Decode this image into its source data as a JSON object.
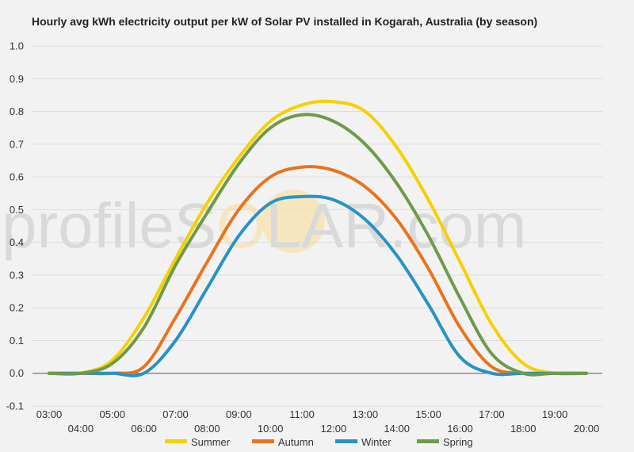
{
  "chart_data": {
    "type": "line",
    "title": "Hourly avg kWh electricity output per kW of Solar PV installed in Kogarah, Australia (by season)",
    "xlabel": "",
    "ylabel": "",
    "ylim": [
      -0.1,
      1.0
    ],
    "yticks": [
      "1.0",
      "0.9",
      "0.8",
      "0.7",
      "0.6",
      "0.5",
      "0.4",
      "0.3",
      "0.2",
      "0.1",
      "0.0",
      "-0.1"
    ],
    "categories": [
      "03:00",
      "04:00",
      "05:00",
      "06:00",
      "07:00",
      "08:00",
      "09:00",
      "10:00",
      "11:00",
      "12:00",
      "13:00",
      "14:00",
      "15:00",
      "16:00",
      "17:00",
      "18:00",
      "19:00",
      "20:00"
    ],
    "grid": true,
    "legend_position": "bottom",
    "series": [
      {
        "name": "Summer",
        "color": "#f7d000",
        "values": [
          0,
          0,
          0.04,
          0.17,
          0.35,
          0.52,
          0.66,
          0.77,
          0.82,
          0.83,
          0.8,
          0.69,
          0.53,
          0.34,
          0.15,
          0.03,
          0,
          0
        ]
      },
      {
        "name": "Autumn",
        "color": "#e8741e",
        "values": [
          0,
          0,
          0,
          0.02,
          0.17,
          0.34,
          0.5,
          0.6,
          0.63,
          0.62,
          0.57,
          0.47,
          0.32,
          0.14,
          0.02,
          0,
          0,
          0
        ]
      },
      {
        "name": "Winter",
        "color": "#2793c5",
        "values": [
          0,
          0,
          0,
          0,
          0.1,
          0.26,
          0.42,
          0.52,
          0.54,
          0.53,
          0.47,
          0.36,
          0.21,
          0.05,
          0,
          0,
          0,
          0
        ]
      },
      {
        "name": "Spring",
        "color": "#6e9a4a",
        "values": [
          0,
          0,
          0.03,
          0.14,
          0.33,
          0.49,
          0.64,
          0.75,
          0.79,
          0.77,
          0.7,
          0.58,
          0.42,
          0.23,
          0.06,
          0,
          0,
          0
        ]
      }
    ]
  },
  "watermark": {
    "left": "profileS",
    "sun_letter": "O",
    "right": "LAR.com"
  }
}
